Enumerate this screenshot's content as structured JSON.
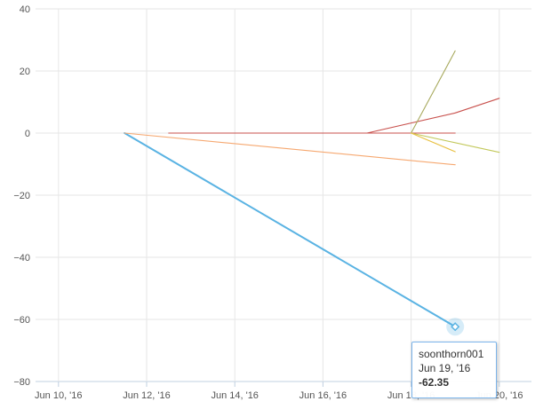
{
  "chart_data": {
    "type": "line",
    "title": "",
    "xlabel": "",
    "ylabel": "",
    "x_ticks": [
      "Jun 10, '16",
      "Jun 12, '16",
      "Jun 14, '16",
      "Jun 16, '16",
      "Jun 18, '16",
      "Jun 20, '16"
    ],
    "y_ticks": [
      40,
      20,
      0,
      -20,
      -40,
      -60,
      -80
    ],
    "ylim": [
      -80,
      40
    ],
    "xlim": [
      "2016-06-09",
      "2016-06-20"
    ],
    "grid": true,
    "legend": "none",
    "series": [
      {
        "name": "soonthorn001",
        "color": "#5ab3e3",
        "points": [
          [
            "2016-06-11T12:00",
            0
          ],
          [
            "2016-06-19T00:00",
            -62.35
          ]
        ]
      },
      {
        "color": "#f6a870",
        "points": [
          [
            "2016-06-11T12:00",
            0
          ],
          [
            "2016-06-19T00:00",
            -10.2
          ]
        ]
      },
      {
        "color": "#c8504c",
        "points": [
          [
            "2016-06-12T12:00",
            0
          ],
          [
            "2016-06-19T00:00",
            0
          ]
        ]
      },
      {
        "color": "#c8504c",
        "points": [
          [
            "2016-06-17T00:00",
            0
          ],
          [
            "2016-06-19T00:00",
            6.5
          ],
          [
            "2016-06-20T00:00",
            11.2
          ]
        ]
      },
      {
        "color": "#a8aa5e",
        "points": [
          [
            "2016-06-18T00:00",
            0
          ],
          [
            "2016-06-19T00:00",
            26.5
          ]
        ]
      },
      {
        "color": "#c2c85a",
        "points": [
          [
            "2016-06-18T00:00",
            0
          ],
          [
            "2016-06-20T00:00",
            -6.2
          ]
        ]
      },
      {
        "color": "#e8c040",
        "points": [
          [
            "2016-06-18T00:00",
            0
          ],
          [
            "2016-06-19T00:00",
            -6.0
          ]
        ]
      }
    ]
  },
  "tooltip": {
    "series_name": "soonthorn001",
    "date": "Jun 19, '16",
    "value": "-62.35"
  }
}
